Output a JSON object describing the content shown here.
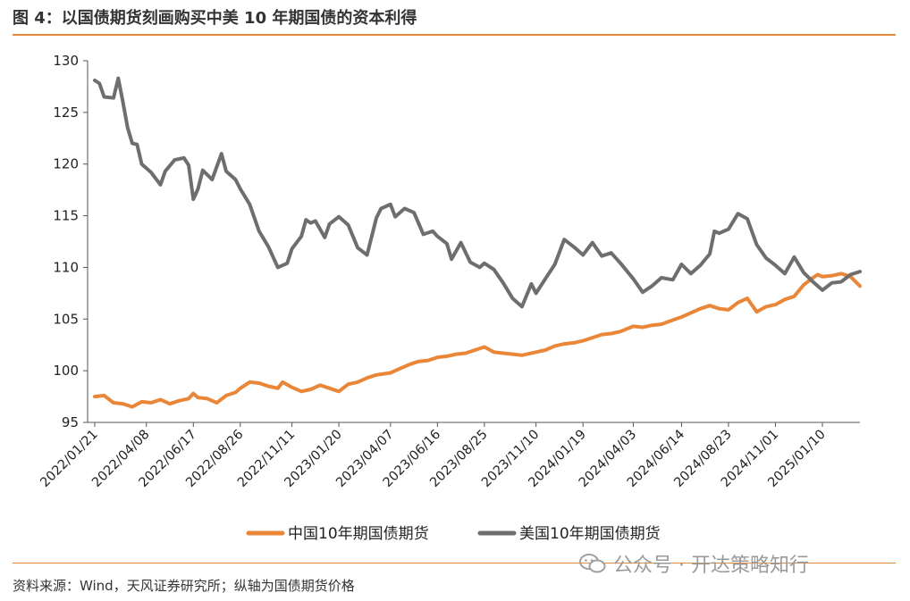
{
  "title": "图 4：以国债期货刻画购买中美 10 年期国债的资本利得",
  "source": "资料来源：Wind，天风证券研究所；纵轴为国债期货价格",
  "watermark": "公众号 · 开达策略知行",
  "colors": {
    "accent": "#e28a3b",
    "china": "#ea8638",
    "us": "#6e6e6e"
  },
  "chart_data": {
    "type": "line",
    "title": "",
    "xlabel": "",
    "ylabel": "",
    "ylim": [
      95,
      130
    ],
    "yticks": [
      95,
      100,
      105,
      110,
      115,
      120,
      125,
      130
    ],
    "xticks": [
      "2022/01/21",
      "2022/04/08",
      "2022/06/17",
      "2022/08/26",
      "2022/11/11",
      "2023/01/20",
      "2023/04/07",
      "2023/06/16",
      "2023/08/25",
      "2023/11/10",
      "2024/01/19",
      "2024/04/03",
      "2024/06/14",
      "2024/08/23",
      "2024/11/01",
      "2025/01/10"
    ],
    "legend_position": "bottom",
    "grid": false,
    "series": [
      {
        "name": "中国10年期国债期货",
        "color": "#ea8638",
        "points": [
          [
            "2022/01/21",
            97.5
          ],
          [
            "2022/02/04",
            97.6
          ],
          [
            "2022/02/18",
            96.9
          ],
          [
            "2022/03/04",
            96.8
          ],
          [
            "2022/03/18",
            96.5
          ],
          [
            "2022/04/01",
            97.0
          ],
          [
            "2022/04/15",
            96.9
          ],
          [
            "2022/04/29",
            97.2
          ],
          [
            "2022/05/13",
            96.8
          ],
          [
            "2022/05/27",
            97.1
          ],
          [
            "2022/06/10",
            97.3
          ],
          [
            "2022/06/17",
            97.8
          ],
          [
            "2022/06/24",
            97.4
          ],
          [
            "2022/07/08",
            97.3
          ],
          [
            "2022/07/22",
            96.9
          ],
          [
            "2022/08/05",
            97.6
          ],
          [
            "2022/08/19",
            97.9
          ],
          [
            "2022/08/26",
            98.3
          ],
          [
            "2022/09/09",
            98.9
          ],
          [
            "2022/09/23",
            98.8
          ],
          [
            "2022/10/07",
            98.5
          ],
          [
            "2022/10/21",
            98.3
          ],
          [
            "2022/10/28",
            98.9
          ],
          [
            "2022/11/11",
            98.4
          ],
          [
            "2022/11/25",
            98.0
          ],
          [
            "2022/12/09",
            98.2
          ],
          [
            "2022/12/23",
            98.6
          ],
          [
            "2023/01/06",
            98.3
          ],
          [
            "2023/01/20",
            98.0
          ],
          [
            "2023/02/03",
            98.7
          ],
          [
            "2023/02/17",
            98.9
          ],
          [
            "2023/03/03",
            99.3
          ],
          [
            "2023/03/17",
            99.6
          ],
          [
            "2023/04/07",
            99.8
          ],
          [
            "2023/04/21",
            100.2
          ],
          [
            "2023/05/05",
            100.6
          ],
          [
            "2023/05/19",
            100.9
          ],
          [
            "2023/06/02",
            101.0
          ],
          [
            "2023/06/16",
            101.3
          ],
          [
            "2023/06/30",
            101.4
          ],
          [
            "2023/07/14",
            101.6
          ],
          [
            "2023/07/28",
            101.7
          ],
          [
            "2023/08/11",
            102.0
          ],
          [
            "2023/08/25",
            102.3
          ],
          [
            "2023/09/08",
            101.8
          ],
          [
            "2023/09/22",
            101.7
          ],
          [
            "2023/10/06",
            101.6
          ],
          [
            "2023/10/20",
            101.5
          ],
          [
            "2023/11/10",
            101.8
          ],
          [
            "2023/11/24",
            102.0
          ],
          [
            "2023/12/08",
            102.4
          ],
          [
            "2023/12/22",
            102.6
          ],
          [
            "2024/01/05",
            102.7
          ],
          [
            "2024/01/19",
            102.9
          ],
          [
            "2024/02/02",
            103.2
          ],
          [
            "2024/02/16",
            103.5
          ],
          [
            "2024/03/01",
            103.6
          ],
          [
            "2024/03/15",
            103.8
          ],
          [
            "2024/04/03",
            104.3
          ],
          [
            "2024/04/17",
            104.2
          ],
          [
            "2024/05/01",
            104.4
          ],
          [
            "2024/05/15",
            104.5
          ],
          [
            "2024/06/01",
            104.9
          ],
          [
            "2024/06/14",
            105.2
          ],
          [
            "2024/06/28",
            105.6
          ],
          [
            "2024/07/12",
            106.0
          ],
          [
            "2024/07/26",
            106.3
          ],
          [
            "2024/08/09",
            106.0
          ],
          [
            "2024/08/23",
            105.9
          ],
          [
            "2024/09/06",
            106.6
          ],
          [
            "2024/09/20",
            107.0
          ],
          [
            "2024/10/04",
            105.7
          ],
          [
            "2024/10/18",
            106.2
          ],
          [
            "2024/11/01",
            106.4
          ],
          [
            "2024/11/15",
            106.9
          ],
          [
            "2024/11/29",
            107.2
          ],
          [
            "2024/12/13",
            108.3
          ],
          [
            "2024/12/27",
            109.0
          ],
          [
            "2025/01/03",
            109.3
          ],
          [
            "2025/01/10",
            109.1
          ],
          [
            "2025/01/24",
            109.2
          ],
          [
            "2025/02/07",
            109.4
          ],
          [
            "2025/02/21",
            109.1
          ],
          [
            "2025/03/07",
            108.2
          ]
        ]
      },
      {
        "name": "美国10年期国债期货",
        "color": "#6e6e6e",
        "points": [
          [
            "2022/01/21",
            128.1
          ],
          [
            "2022/01/28",
            127.8
          ],
          [
            "2022/02/04",
            126.5
          ],
          [
            "2022/02/18",
            126.4
          ],
          [
            "2022/02/25",
            128.3
          ],
          [
            "2022/03/04",
            126.0
          ],
          [
            "2022/03/11",
            123.5
          ],
          [
            "2022/03/18",
            122.0
          ],
          [
            "2022/03/25",
            121.9
          ],
          [
            "2022/04/01",
            120.0
          ],
          [
            "2022/04/15",
            119.2
          ],
          [
            "2022/04/29",
            118.0
          ],
          [
            "2022/05/06",
            119.3
          ],
          [
            "2022/05/20",
            120.4
          ],
          [
            "2022/06/03",
            120.6
          ],
          [
            "2022/06/10",
            119.9
          ],
          [
            "2022/06/17",
            116.6
          ],
          [
            "2022/06/24",
            117.6
          ],
          [
            "2022/07/01",
            119.4
          ],
          [
            "2022/07/15",
            118.5
          ],
          [
            "2022/07/29",
            121.0
          ],
          [
            "2022/08/05",
            119.3
          ],
          [
            "2022/08/19",
            118.5
          ],
          [
            "2022/08/26",
            117.6
          ],
          [
            "2022/09/09",
            116.1
          ],
          [
            "2022/09/23",
            113.5
          ],
          [
            "2022/10/07",
            112.0
          ],
          [
            "2022/10/21",
            110.0
          ],
          [
            "2022/11/04",
            110.4
          ],
          [
            "2022/11/11",
            111.8
          ],
          [
            "2022/11/25",
            113.0
          ],
          [
            "2022/12/02",
            114.6
          ],
          [
            "2022/12/09",
            114.3
          ],
          [
            "2022/12/16",
            114.5
          ],
          [
            "2022/12/30",
            112.9
          ],
          [
            "2023/01/06",
            114.2
          ],
          [
            "2023/01/20",
            114.9
          ],
          [
            "2023/02/03",
            114.1
          ],
          [
            "2023/02/17",
            111.9
          ],
          [
            "2023/03/03",
            111.2
          ],
          [
            "2023/03/17",
            114.8
          ],
          [
            "2023/03/24",
            115.7
          ],
          [
            "2023/04/07",
            116.1
          ],
          [
            "2023/04/14",
            114.9
          ],
          [
            "2023/04/28",
            115.7
          ],
          [
            "2023/05/12",
            115.3
          ],
          [
            "2023/05/26",
            113.2
          ],
          [
            "2023/06/09",
            113.5
          ],
          [
            "2023/06/16",
            113.0
          ],
          [
            "2023/06/30",
            112.3
          ],
          [
            "2023/07/07",
            110.8
          ],
          [
            "2023/07/21",
            112.4
          ],
          [
            "2023/08/04",
            110.5
          ],
          [
            "2023/08/18",
            110.0
          ],
          [
            "2023/08/25",
            110.4
          ],
          [
            "2023/09/08",
            109.8
          ],
          [
            "2023/09/22",
            108.5
          ],
          [
            "2023/10/06",
            107.0
          ],
          [
            "2023/10/20",
            106.2
          ],
          [
            "2023/11/03",
            108.4
          ],
          [
            "2023/11/10",
            107.5
          ],
          [
            "2023/11/24",
            108.9
          ],
          [
            "2023/12/08",
            110.3
          ],
          [
            "2023/12/22",
            112.7
          ],
          [
            "2024/01/05",
            112.0
          ],
          [
            "2024/01/19",
            111.2
          ],
          [
            "2024/02/02",
            112.4
          ],
          [
            "2024/02/16",
            111.1
          ],
          [
            "2024/03/01",
            111.4
          ],
          [
            "2024/03/15",
            110.4
          ],
          [
            "2024/04/03",
            108.9
          ],
          [
            "2024/04/17",
            107.6
          ],
          [
            "2024/05/01",
            108.2
          ],
          [
            "2024/05/15",
            109.0
          ],
          [
            "2024/06/01",
            108.8
          ],
          [
            "2024/06/14",
            110.3
          ],
          [
            "2024/06/28",
            109.4
          ],
          [
            "2024/07/12",
            110.2
          ],
          [
            "2024/07/26",
            111.3
          ],
          [
            "2024/08/02",
            113.5
          ],
          [
            "2024/08/09",
            113.3
          ],
          [
            "2024/08/23",
            113.7
          ],
          [
            "2024/09/06",
            115.2
          ],
          [
            "2024/09/20",
            114.7
          ],
          [
            "2024/10/04",
            112.2
          ],
          [
            "2024/10/18",
            110.9
          ],
          [
            "2024/11/01",
            110.2
          ],
          [
            "2024/11/15",
            109.4
          ],
          [
            "2024/11/29",
            111.0
          ],
          [
            "2024/12/13",
            109.5
          ],
          [
            "2024/12/27",
            108.6
          ],
          [
            "2025/01/10",
            107.8
          ],
          [
            "2025/01/24",
            108.5
          ],
          [
            "2025/02/07",
            108.6
          ],
          [
            "2025/02/21",
            109.3
          ],
          [
            "2025/03/07",
            109.6
          ]
        ]
      }
    ]
  }
}
